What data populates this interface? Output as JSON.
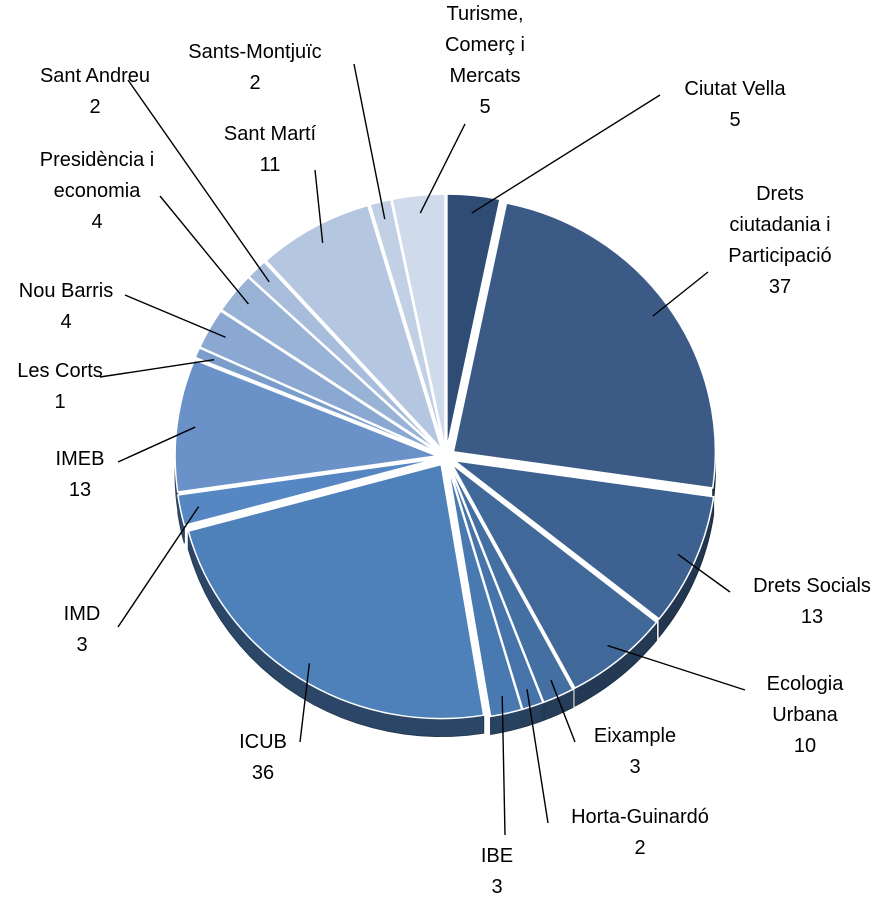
{
  "chart_data": {
    "type": "pie",
    "title": "",
    "style": "3d-exploded",
    "slices": [
      {
        "label": [
          "Ciutat Vella"
        ],
        "value": 5,
        "color": "#2f4d74"
      },
      {
        "label": [
          "Drets",
          "ciutadania i",
          "Participació"
        ],
        "value": 37,
        "color": "#3b5b86"
      },
      {
        "label": [
          "Drets Socials"
        ],
        "value": 13,
        "color": "#3d6291"
      },
      {
        "label": [
          "Ecologia",
          "Urbana"
        ],
        "value": 10,
        "color": "#406899"
      },
      {
        "label": [
          "Eixample"
        ],
        "value": 3,
        "color": "#436fa2"
      },
      {
        "label": [
          "Horta-Guinardó"
        ],
        "value": 2,
        "color": "#4674aa"
      },
      {
        "label": [
          "IBE"
        ],
        "value": 3,
        "color": "#4979b1"
      },
      {
        "label": [
          "ICUB"
        ],
        "value": 36,
        "color": "#4e80ba"
      },
      {
        "label": [
          "IMD"
        ],
        "value": 3,
        "color": "#5687c2"
      },
      {
        "label": [
          "IMEB"
        ],
        "value": 13,
        "color": "#6a92c8"
      },
      {
        "label": [
          "Les Corts"
        ],
        "value": 1,
        "color": "#7a9dcc"
      },
      {
        "label": [
          "Nou Barris"
        ],
        "value": 4,
        "color": "#8aa8d1"
      },
      {
        "label": [
          "Presidència i",
          "economia"
        ],
        "value": 4,
        "color": "#99b3d6"
      },
      {
        "label": [
          "Sant Andreu"
        ],
        "value": 2,
        "color": "#a7bddb"
      },
      {
        "label": [
          "Sant Martí"
        ],
        "value": 11,
        "color": "#b5c7e0"
      },
      {
        "label": [
          "Sants-Montjuïc"
        ],
        "value": 2,
        "color": "#c2d0e5"
      },
      {
        "label": [
          "Turisme,",
          "Comerç i",
          "Mercats"
        ],
        "value": 5,
        "color": "#cfdaeb"
      }
    ]
  }
}
